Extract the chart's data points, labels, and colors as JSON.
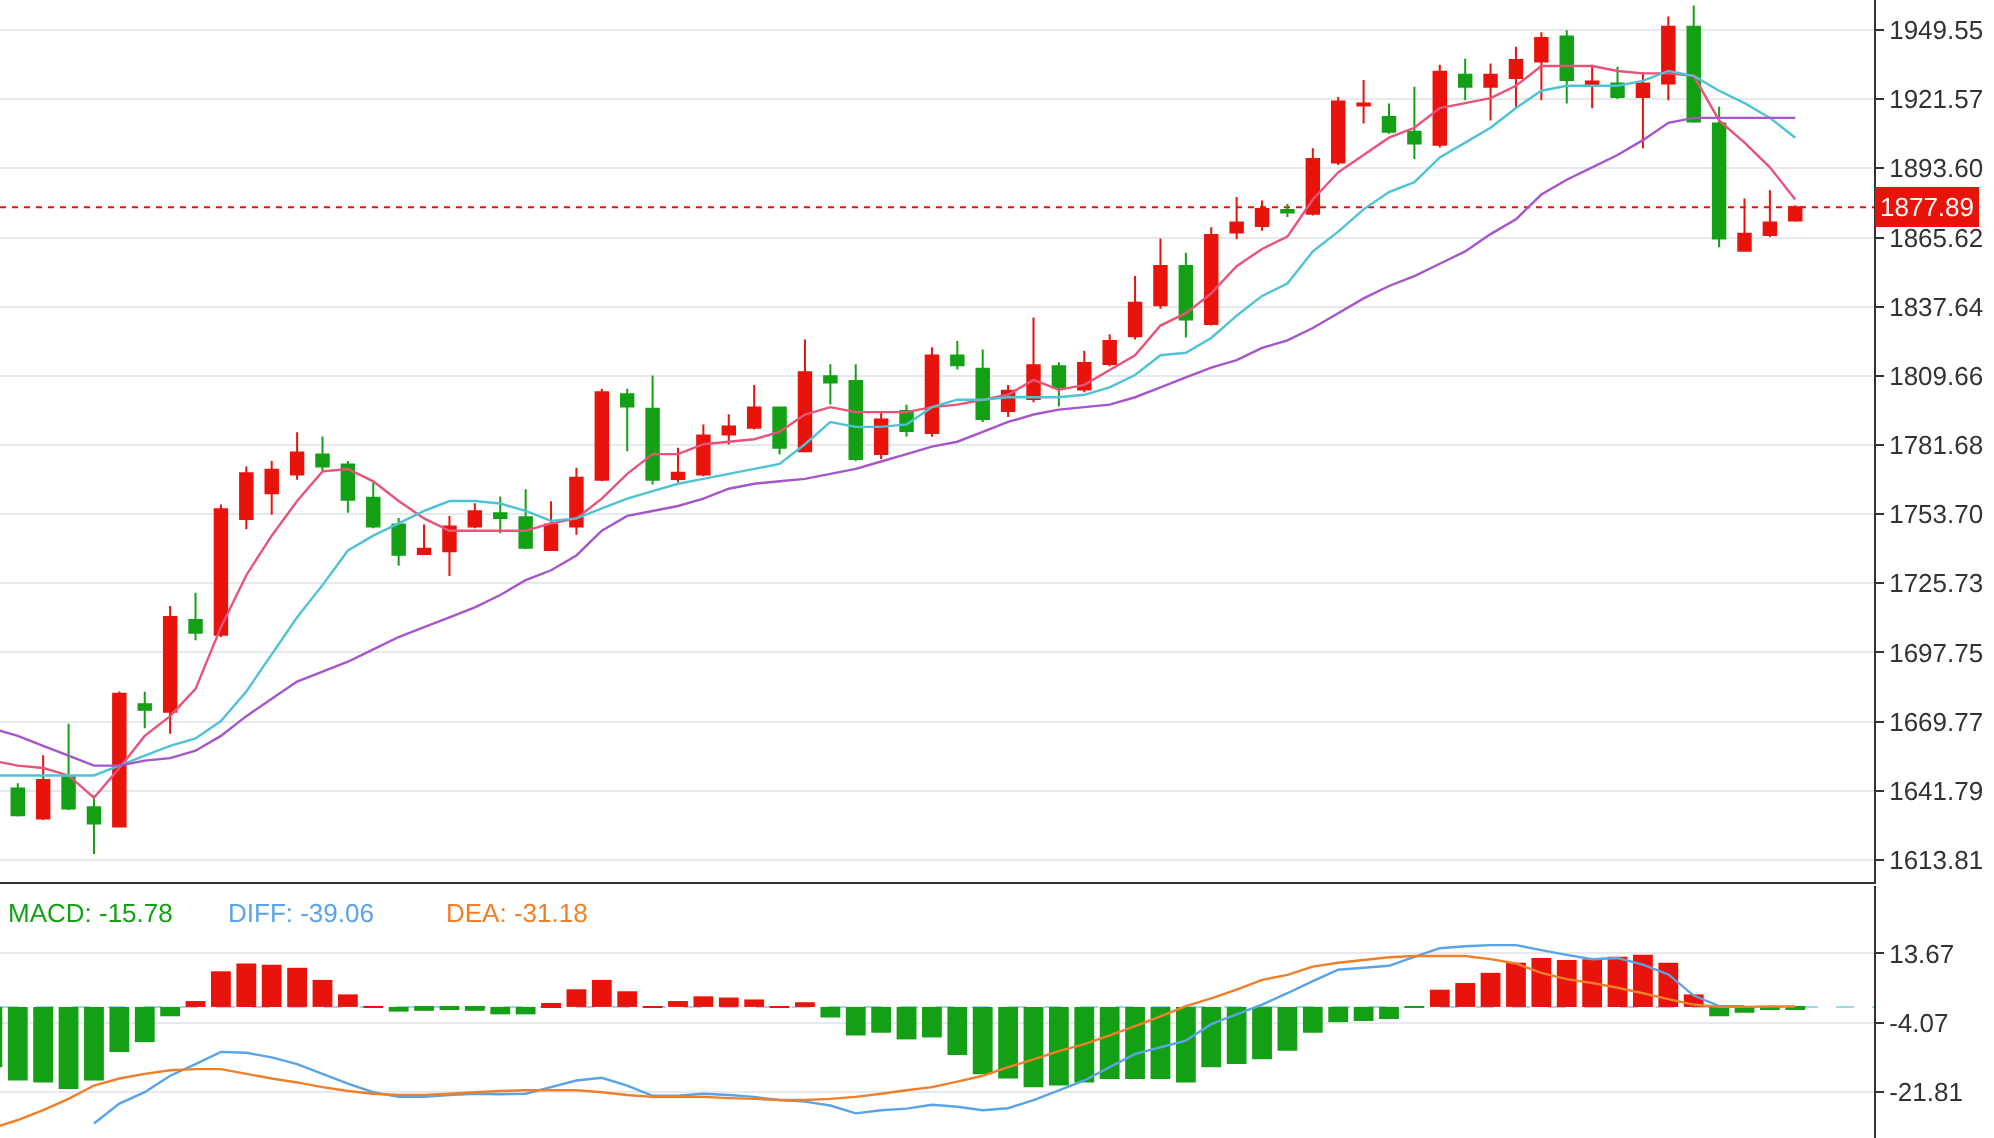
{
  "chart_data": [
    {
      "type": "candlestick",
      "categories": [
        null,
        null,
        null,
        null,
        null,
        null,
        null,
        null,
        null,
        null,
        null,
        null,
        null,
        null,
        null,
        null,
        null,
        null,
        null,
        null,
        null,
        null,
        null,
        null,
        null,
        null,
        null,
        null,
        null,
        null,
        null,
        null,
        null,
        null,
        null,
        null,
        null,
        null,
        null,
        null,
        null,
        null,
        null,
        null,
        null,
        null,
        null,
        null,
        null,
        null,
        null,
        null,
        null,
        null,
        null,
        null,
        null,
        null,
        null,
        null,
        null,
        null,
        null,
        null,
        null,
        null,
        null,
        null,
        null,
        null,
        null,
        null
      ],
      "ohlc": [
        [
          1661.6,
          1663,
          1643,
          1643.8
        ],
        [
          1642.7,
          1644.8,
          1631.4,
          1631.9
        ],
        [
          1630.6,
          1656.2,
          1630,
          1646.2
        ],
        [
          1647.3,
          1668.9,
          1634,
          1634.6
        ],
        [
          1635.1,
          1640,
          1616.2,
          1628.6
        ],
        [
          1627.3,
          1682,
          1627,
          1681.1
        ],
        [
          1676.8,
          1681.9,
          1667.1,
          1674.6
        ],
        [
          1673.8,
          1716.5,
          1664.9,
          1712.1
        ],
        [
          1710.9,
          1721.9,
          1702.7,
          1705.7
        ],
        [
          1704.9,
          1757.6,
          1704,
          1755.7
        ],
        [
          1751.7,
          1773,
          1747.6,
          1770.3
        ],
        [
          1762.2,
          1775.2,
          1753.5,
          1771.7
        ],
        [
          1769.7,
          1786.8,
          1767.6,
          1778.7
        ],
        [
          1777.8,
          1785.1,
          1770.5,
          1773
        ],
        [
          1773.8,
          1775.2,
          1754.3,
          1759.5
        ],
        [
          1760.3,
          1766.5,
          1748,
          1748.7
        ],
        [
          1749.5,
          1752.2,
          1732.8,
          1737.3
        ],
        [
          1737.6,
          1749.5,
          1737.3,
          1739.7
        ],
        [
          1738.7,
          1753,
          1728.7,
          1748.7
        ],
        [
          1748.7,
          1758.1,
          1748,
          1754.9
        ],
        [
          1754.1,
          1760.8,
          1746,
          1752.2
        ],
        [
          1752.5,
          1763.8,
          1739.5,
          1740.1
        ],
        [
          1739.2,
          1758.9,
          1739,
          1749.5
        ],
        [
          1748.7,
          1772.5,
          1745.4,
          1768.4
        ],
        [
          1767.6,
          1804.4,
          1767,
          1803
        ],
        [
          1802.2,
          1804.4,
          1779.2,
          1797.3
        ],
        [
          1796.3,
          1809.8,
          1765.7,
          1767.6
        ],
        [
          1767.9,
          1780.6,
          1766.5,
          1770.5
        ],
        [
          1769.7,
          1790,
          1769,
          1785.5
        ],
        [
          1785.9,
          1794.1,
          1781.9,
          1789.2
        ],
        [
          1788.7,
          1806,
          1788,
          1796.8
        ],
        [
          1796.8,
          1797,
          1777.8,
          1780.6
        ],
        [
          1779.2,
          1824.4,
          1779,
          1811.1
        ],
        [
          1809.5,
          1814.3,
          1798.1,
          1807
        ],
        [
          1807.6,
          1814.3,
          1775.2,
          1776
        ],
        [
          1778,
          1795,
          1776,
          1792
        ],
        [
          1795.4,
          1798,
          1785,
          1787.3
        ],
        [
          1786.5,
          1821.2,
          1785,
          1817.9
        ],
        [
          1817.9,
          1823.8,
          1812.2,
          1813.9
        ],
        [
          1812.5,
          1820.3,
          1791,
          1792.2
        ],
        [
          1795.4,
          1806,
          1793,
          1803.6
        ],
        [
          1800.3,
          1833.3,
          1799,
          1813.9
        ],
        [
          1813.5,
          1815.2,
          1797.3,
          1804.9
        ],
        [
          1804.1,
          1819.8,
          1803,
          1814.9
        ],
        [
          1814.4,
          1826.5,
          1813.5,
          1823.8
        ],
        [
          1825.7,
          1850,
          1824.4,
          1839.2
        ],
        [
          1838.2,
          1865.2,
          1836.8,
          1854.1
        ],
        [
          1854.1,
          1859.5,
          1825.2,
          1832.5
        ],
        [
          1830.6,
          1869.8,
          1830,
          1866.6
        ],
        [
          1867.6,
          1882,
          1864.9,
          1871.7
        ],
        [
          1870.3,
          1880.6,
          1868.4,
          1877.1
        ],
        [
          1876.8,
          1879.2,
          1873.9,
          1875.7
        ],
        [
          1875.2,
          1901.7,
          1874.5,
          1897.4
        ],
        [
          1896,
          1922.5,
          1895,
          1920.6
        ],
        [
          1919,
          1929.3,
          1911.7,
          1919.8
        ],
        [
          1914.4,
          1919.8,
          1907.6,
          1908.4
        ],
        [
          1908.4,
          1926.6,
          1897.4,
          1903.6
        ],
        [
          1903.1,
          1935.5,
          1902,
          1932.7
        ],
        [
          1931.5,
          1937.9,
          1921.1,
          1926.6
        ],
        [
          1926.6,
          1936,
          1913,
          1931.5
        ],
        [
          1930.1,
          1942.8,
          1917.9,
          1937.4
        ],
        [
          1936.8,
          1948.7,
          1921.1,
          1946.3
        ],
        [
          1946.9,
          1949.5,
          1919.8,
          1929.3
        ],
        [
          1927.6,
          1935.5,
          1917.9,
          1928.7
        ],
        [
          1927.9,
          1934.7,
          1921.7,
          1922.5
        ],
        [
          1922.5,
          1932.5,
          1901.7,
          1927.9
        ],
        [
          1927.9,
          1955,
          1921.1,
          1950.9
        ],
        [
          1950.9,
          1959.5,
          1912,
          1912.5
        ],
        [
          1911.7,
          1918.5,
          1861.7,
          1865.2
        ],
        [
          1860.3,
          1881.4,
          1860,
          1867.1
        ],
        [
          1866.6,
          1884.7,
          1865.8,
          1871.7
        ],
        [
          1872.5,
          1878.7,
          1872,
          1877.89
        ]
      ],
      "colors": [
        "#14a014",
        "#14a014",
        "#e8140c",
        "#14a014",
        "#14a014",
        "#e8140c",
        "#14a014",
        "#e8140c",
        "#14a014",
        "#e8140c",
        "#e8140c",
        "#e8140c",
        "#e8140c",
        "#14a014",
        "#14a014",
        "#14a014",
        "#14a014",
        "#e8140c",
        "#e8140c",
        "#e8140c",
        "#14a014",
        "#14a014",
        "#e8140c",
        "#e8140c",
        "#e8140c",
        "#14a014",
        "#14a014",
        "#e8140c",
        "#e8140c",
        "#e8140c",
        "#e8140c",
        "#14a014",
        "#e8140c",
        "#14a014",
        "#14a014",
        "#e8140c",
        "#14a014",
        "#e8140c",
        "#14a014",
        "#14a014",
        "#e8140c",
        "#e8140c",
        "#14a014",
        "#e8140c",
        "#e8140c",
        "#e8140c",
        "#e8140c",
        "#14a014",
        "#e8140c",
        "#e8140c",
        "#e8140c",
        "#14a014",
        "#e8140c",
        "#e8140c",
        "#e8140c",
        "#14a014",
        "#14a014",
        "#e8140c",
        "#14a014",
        "#e8140c",
        "#e8140c",
        "#e8140c",
        "#14a014",
        "#e8140c",
        "#14a014",
        "#e8140c",
        "#e8140c",
        "#14a014",
        "#14a014",
        "#e8140c",
        "#e8140c",
        "#e8140c"
      ],
      "series": [
        {
          "type": "line",
          "color": "#e8537a",
          "values": [
            1654,
            1652,
            1651,
            1648,
            1639,
            1651,
            1664,
            1672,
            1683,
            1708,
            1729,
            1745,
            1759,
            1771,
            1772,
            1767,
            1759,
            1752,
            1747,
            1747,
            1747,
            1747,
            1750,
            1752,
            1760,
            1770,
            1778,
            1778,
            1782,
            1783,
            1784,
            1787,
            1794,
            1797,
            1795,
            1795,
            1795,
            1797,
            1798,
            1800,
            1802,
            1808,
            1804,
            1806,
            1812,
            1818,
            1830,
            1835,
            1843,
            1854,
            1861,
            1866,
            1881,
            1892,
            1899,
            1906,
            1910,
            1918,
            1920,
            1922,
            1927,
            1935,
            1935,
            1935,
            1933,
            1932,
            1932,
            1931,
            1913,
            1904,
            1894,
            1881
          ]
        },
        {
          "type": "line",
          "color": "#4ec3d6",
          "values": [
            1648,
            1648,
            1648,
            1648,
            1648,
            1652,
            1656,
            1660,
            1663,
            1670,
            1682,
            1697,
            1712,
            1725,
            1739,
            1745,
            1750,
            1755,
            1759,
            1759,
            1758,
            1755,
            1751,
            1752,
            1756,
            1760,
            1763,
            1766,
            1768,
            1770,
            1772,
            1774,
            1782,
            1791,
            1789,
            1789,
            1790,
            1797,
            1800,
            1800,
            1801,
            1801,
            1801,
            1802,
            1805,
            1810,
            1818,
            1819,
            1825,
            1834,
            1842,
            1847,
            1860,
            1868,
            1877,
            1884,
            1888,
            1898,
            1904,
            1910,
            1918,
            1925,
            1927,
            1927,
            1927,
            1929,
            1933,
            1931,
            1925,
            1920,
            1914,
            1906
          ]
        },
        {
          "type": "line",
          "color": "#a656c8",
          "values": [
            1667,
            1664,
            1660,
            1656,
            1652,
            1652,
            1654,
            1655,
            1658,
            1664,
            1672,
            1679,
            1686,
            1690,
            1694,
            1699,
            1704,
            1708,
            1712,
            1716,
            1721,
            1727,
            1731,
            1737,
            1747,
            1753,
            1755,
            1757,
            1760,
            1764,
            1766,
            1767,
            1768,
            1770,
            1772,
            1775,
            1778,
            1781,
            1783,
            1787,
            1791,
            1794,
            1796,
            1797,
            1798,
            1801,
            1805,
            1809,
            1813,
            1816,
            1821,
            1824,
            1829,
            1835,
            1841,
            1846,
            1850,
            1855,
            1860,
            1867,
            1873,
            1883,
            1889,
            1894,
            1899,
            1905,
            1912,
            1914,
            1914,
            1914,
            1914,
            1914
          ]
        }
      ],
      "ylim": [
        1604.9,
        1961.7
      ],
      "yticks": [
        1949.55,
        1921.57,
        {
          "value": 1893.6,
          "label": "1893.60"
        },
        1865.62,
        1837.64,
        1809.66,
        1781.68,
        {
          "value": 1753.7,
          "label": "1753.70"
        },
        1725.73,
        1697.75,
        1669.77,
        1641.79,
        1613.81
      ],
      "ref_lines": [
        {
          "axis": "y",
          "value": 1877.89,
          "label": "1877.89",
          "color": "#e8140c",
          "line_style": "dotted"
        }
      ],
      "grid": "y",
      "tick_labels": "y"
    },
    {
      "type": "bar",
      "categories": [
        null,
        null,
        null,
        null,
        null,
        null,
        null,
        null,
        null,
        null,
        null,
        null,
        null,
        null,
        null,
        null,
        null,
        null,
        null,
        null,
        null,
        null,
        null,
        null,
        null,
        null,
        null,
        null,
        null,
        null,
        null,
        null,
        null,
        null,
        null,
        null,
        null,
        null,
        null,
        null,
        null,
        null,
        null,
        null,
        null,
        null,
        null,
        null,
        null,
        null,
        null,
        null,
        null,
        null,
        null,
        null,
        null,
        null,
        null,
        null,
        null,
        null,
        null,
        null,
        null,
        null,
        null,
        null,
        null,
        null,
        null,
        null
      ],
      "series": [
        {
          "name": "MACD: -15.78",
          "type": "bar",
          "color": "#14a014",
          "values": [
            -15.4,
            -18.8,
            -19.3,
            -21.0,
            -18.8,
            -11.5,
            -9.0,
            -2.4,
            1.5,
            9.1,
            11.1,
            10.8,
            10.0,
            6.9,
            3.2,
            0.2,
            -1.2,
            -1.0,
            -0.7,
            -1.0,
            -1.9,
            -1.9,
            1.0,
            4.5,
            6.9,
            4.0,
            0.2,
            1.5,
            2.7,
            2.4,
            1.9,
            0.2,
            1.2,
            -2.7,
            -7.3,
            -6.6,
            -8.3,
            -7.8,
            -12.3,
            -17.2,
            -18.3,
            -20.5,
            -20.1,
            -19.3,
            -18.4,
            -18.4,
            -18.4,
            -19.3,
            -15.4,
            -14.6,
            -13.4,
            -11.2,
            -6.6,
            -3.9,
            -3.6,
            -3.1,
            -0.2,
            4.4,
            6.1,
            8.7,
            11.3,
            12.5,
            12.0,
            12.2,
            12.8,
            13.3,
            11.3,
            3.2,
            -2.4,
            -1.5,
            -0.5,
            -0.3
          ],
          "colors": [
            "#14a014",
            "#14a014",
            "#14a014",
            "#14a014",
            "#14a014",
            "#14a014",
            "#14a014",
            "#14a014",
            "#e8140c",
            "#e8140c",
            "#e8140c",
            "#e8140c",
            "#e8140c",
            "#e8140c",
            "#e8140c",
            "#e8140c",
            "#14a014",
            "#14a014",
            "#14a014",
            "#14a014",
            "#14a014",
            "#14a014",
            "#e8140c",
            "#e8140c",
            "#e8140c",
            "#e8140c",
            "#e8140c",
            "#e8140c",
            "#e8140c",
            "#e8140c",
            "#e8140c",
            "#e8140c",
            "#e8140c",
            "#14a014",
            "#14a014",
            "#14a014",
            "#14a014",
            "#14a014",
            "#14a014",
            "#14a014",
            "#14a014",
            "#14a014",
            "#14a014",
            "#14a014",
            "#14a014",
            "#14a014",
            "#14a014",
            "#14a014",
            "#14a014",
            "#14a014",
            "#14a014",
            "#14a014",
            "#14a014",
            "#14a014",
            "#14a014",
            "#14a014",
            "#14a014",
            "#e8140c",
            "#e8140c",
            "#e8140c",
            "#e8140c",
            "#e8140c",
            "#e8140c",
            "#e8140c",
            "#e8140c",
            "#e8140c",
            "#e8140c",
            "#e8140c",
            "#14a014",
            "#14a014",
            "#14a014",
            "#14a014"
          ]
        },
        {
          "name": "DIFF: -39.06",
          "type": "line",
          "color": "#5aa3e6",
          "values": [
            null,
            null,
            null,
            null,
            -29.8,
            -24.7,
            -21.8,
            -17.6,
            -14.6,
            -11.5,
            -11.7,
            -12.9,
            -14.6,
            -17.1,
            -19.6,
            -21.8,
            -23.0,
            -23.0,
            -22.5,
            -22.2,
            -22.3,
            -22.2,
            -20.5,
            -18.8,
            -18.1,
            -20.1,
            -22.7,
            -22.7,
            -22.2,
            -22.5,
            -23.0,
            -23.8,
            -24.2,
            -25.2,
            -27.2,
            -26.4,
            -26.0,
            -25.0,
            -25.5,
            -26.4,
            -25.9,
            -23.8,
            -21.3,
            -18.8,
            -15.4,
            -12.0,
            -10.3,
            -8.6,
            -4.4,
            -1.9,
            0.6,
            3.5,
            6.6,
            9.5,
            10.0,
            10.5,
            12.8,
            15.0,
            15.5,
            15.8,
            15.8,
            14.5,
            13.3,
            12.2,
            12.5,
            10.8,
            8.3,
            2.9,
            0.2,
            0.2,
            null,
            null
          ]
        },
        {
          "name": "DEA: -31.18",
          "type": "line",
          "color": "#f07f2a",
          "values": [
            -31.0,
            -28.9,
            -26.4,
            -23.5,
            -20.1,
            -18.3,
            -17.1,
            -16.2,
            -15.9,
            -15.9,
            -17.1,
            -18.3,
            -19.3,
            -20.5,
            -21.5,
            -22.2,
            -22.5,
            -22.5,
            -22.2,
            -21.8,
            -21.5,
            -21.3,
            -21.3,
            -21.3,
            -21.8,
            -22.5,
            -23.0,
            -23.0,
            -23.0,
            -23.3,
            -23.5,
            -23.8,
            -23.8,
            -23.5,
            -23.0,
            -22.2,
            -21.3,
            -20.5,
            -19.1,
            -17.6,
            -15.4,
            -13.4,
            -11.3,
            -9.5,
            -7.3,
            -4.9,
            -2.4,
            0.2,
            2.2,
            4.4,
            6.9,
            8.2,
            10.3,
            11.3,
            12.0,
            12.7,
            13.0,
            13.0,
            13.0,
            12.2,
            11.1,
            8.7,
            7.1,
            6.1,
            4.9,
            3.5,
            2.0,
            0.6,
            0.0,
            0.0,
            0.1,
            0.1
          ]
        }
      ],
      "ylim": [
        -33.5,
        30.9
      ],
      "yticks": [
        13.67,
        -4.07,
        -21.81
      ],
      "ref_lines": [
        {
          "axis": "y",
          "value": 0,
          "color": "#9ed8e6",
          "line_style": "dashed"
        }
      ],
      "grid": "y",
      "tick_labels": "y"
    }
  ]
}
